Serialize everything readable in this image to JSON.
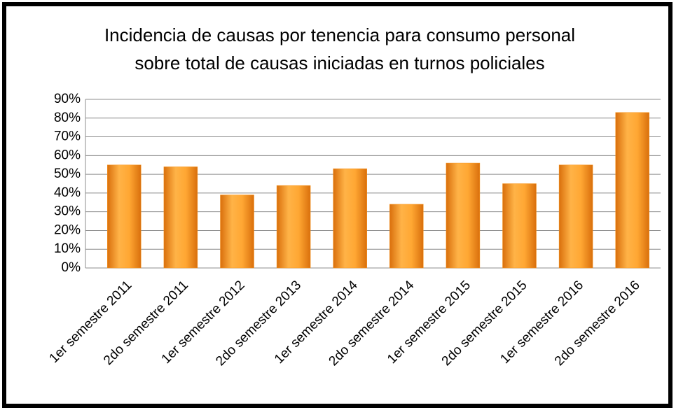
{
  "chart_data": {
    "type": "bar",
    "title": [
      "Incidencia de causas por tenencia para consumo personal",
      "sobre total de causas iniciadas en turnos policiales"
    ],
    "categories": [
      "1er semestre 2011",
      "2do semestre 2011",
      "1er semestre 2012",
      "2do semestre 2013",
      "1er semestre 2014",
      "2do semestre 2014",
      "1er semestre 2015",
      "2do semestre 2015",
      "1er semestre 2016",
      "2do semestre 2016"
    ],
    "values": [
      55,
      54,
      39,
      44,
      53,
      34,
      56,
      45,
      55,
      83
    ],
    "color": "#f7941d",
    "ylim": [
      0,
      90
    ],
    "yticks": [
      {
        "value": 0,
        "label": "0%"
      },
      {
        "value": 10,
        "label": "10%"
      },
      {
        "value": 20,
        "label": "20%"
      },
      {
        "value": 30,
        "label": "30%"
      },
      {
        "value": 40,
        "label": "40%"
      },
      {
        "value": 50,
        "label": "50%"
      },
      {
        "value": 60,
        "label": "60%"
      },
      {
        "value": 70,
        "label": "70%"
      },
      {
        "value": 80,
        "label": "80%"
      },
      {
        "value": 90,
        "label": "90%"
      }
    ],
    "grid": true
  }
}
